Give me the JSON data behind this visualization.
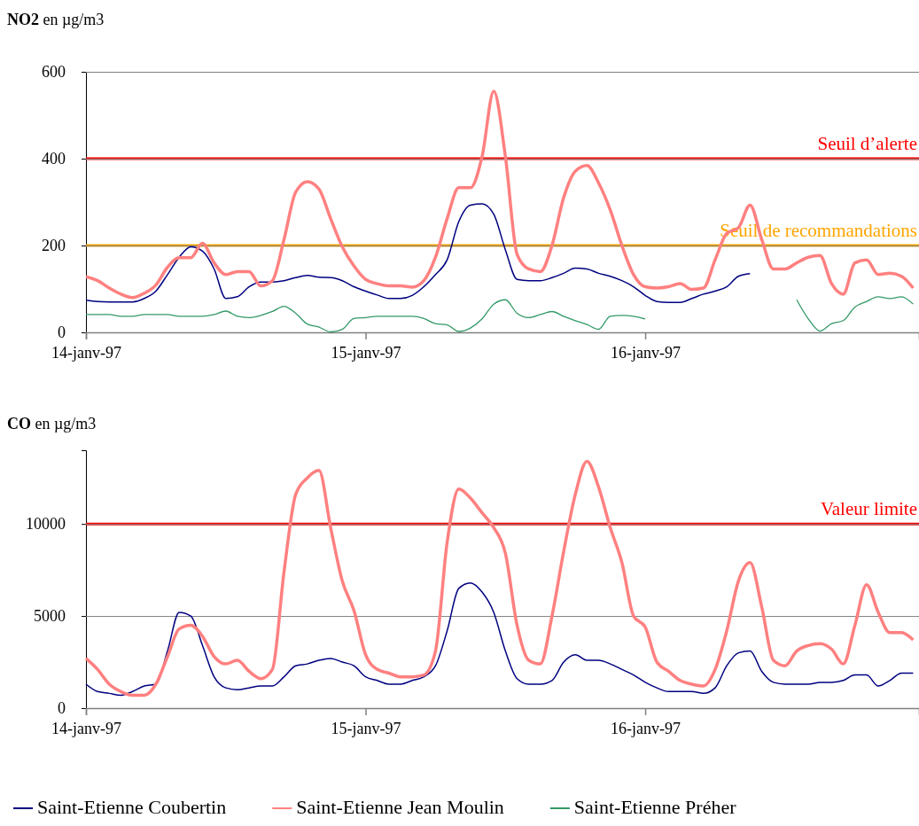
{
  "chart_data": [
    {
      "type": "line",
      "ylabel": "NO2 en µg/m3",
      "x": [
        "1997-01-14T00:00",
        "1997-01-14T01:00",
        "1997-01-14T02:00",
        "1997-01-14T03:00",
        "1997-01-14T04:00",
        "1997-01-14T05:00",
        "1997-01-14T06:00",
        "1997-01-14T07:00",
        "1997-01-14T08:00",
        "1997-01-14T09:00",
        "1997-01-14T10:00",
        "1997-01-14T11:00",
        "1997-01-14T12:00",
        "1997-01-14T13:00",
        "1997-01-14T14:00",
        "1997-01-14T15:00",
        "1997-01-14T16:00",
        "1997-01-14T17:00",
        "1997-01-14T18:00",
        "1997-01-14T19:00",
        "1997-01-14T20:00",
        "1997-01-14T21:00",
        "1997-01-14T22:00",
        "1997-01-14T23:00",
        "1997-01-15T00:00",
        "1997-01-15T01:00",
        "1997-01-15T02:00",
        "1997-01-15T03:00",
        "1997-01-15T04:00",
        "1997-01-15T05:00",
        "1997-01-15T06:00",
        "1997-01-15T07:00",
        "1997-01-15T08:00",
        "1997-01-15T09:00",
        "1997-01-15T10:00",
        "1997-01-15T11:00",
        "1997-01-15T12:00",
        "1997-01-15T13:00",
        "1997-01-15T14:00",
        "1997-01-15T15:00",
        "1997-01-15T16:00",
        "1997-01-15T17:00",
        "1997-01-15T18:00",
        "1997-01-15T19:00",
        "1997-01-15T20:00",
        "1997-01-15T21:00",
        "1997-01-15T22:00",
        "1997-01-15T23:00",
        "1997-01-16T00:00",
        "1997-01-16T01:00",
        "1997-01-16T02:00",
        "1997-01-16T03:00",
        "1997-01-16T04:00",
        "1997-01-16T05:00",
        "1997-01-16T06:00",
        "1997-01-16T07:00",
        "1997-01-16T08:00",
        "1997-01-16T09:00",
        "1997-01-16T10:00",
        "1997-01-16T11:00",
        "1997-01-16T12:00",
        "1997-01-16T13:00",
        "1997-01-16T14:00",
        "1997-01-16T15:00",
        "1997-01-16T16:00",
        "1997-01-16T17:00",
        "1997-01-16T18:00",
        "1997-01-16T19:00",
        "1997-01-16T20:00",
        "1997-01-16T21:00",
        "1997-01-16T22:00",
        "1997-01-16T23:00"
      ],
      "xlim": [
        "1997-01-14T00:00",
        "1997-01-16T23:30"
      ],
      "xticks": [
        {
          "value": "1997-01-14",
          "label": "14-janv-97"
        },
        {
          "value": "1997-01-15",
          "label": "15-janv-97"
        },
        {
          "value": "1997-01-16",
          "label": "16-janv-97"
        }
      ],
      "ylim": [
        0,
        600
      ],
      "yticks": [
        0,
        200,
        400,
        600
      ],
      "grid": "y",
      "legend": "bottom",
      "series": [
        {
          "name": "Saint-Etienne Coubertin",
          "color": "#000080",
          "values": [
            74,
            71,
            70,
            70,
            70,
            78,
            95,
            133,
            173,
            197,
            187,
            146,
            78,
            82,
            105,
            116,
            116,
            119,
            126,
            131,
            127,
            126,
            119,
            105,
            95,
            86,
            78,
            78,
            85,
            105,
            133,
            167,
            255,
            293,
            296,
            272,
            190,
            122,
            119,
            119,
            126,
            136,
            148,
            146,
            136,
            129,
            119,
            105,
            85,
            71,
            69,
            69,
            78,
            88,
            95,
            105,
            129,
            135,
            null,
            null,
            null,
            null,
            null,
            null,
            null,
            null,
            null,
            null,
            null,
            null,
            null,
            null
          ]
        },
        {
          "name": "Saint-Etienne Jean Moulin",
          "color": "#ff8080",
          "values": [
            128,
            119,
            102,
            88,
            80,
            90,
            109,
            150,
            172,
            172,
            205,
            160,
            133,
            140,
            140,
            107,
            119,
            214,
            323,
            347,
            330,
            262,
            197,
            153,
            122,
            112,
            107,
            107,
            104,
            119,
            173,
            262,
            333,
            333,
            405,
            555,
            405,
            180,
            146,
            140,
            200,
            310,
            371,
            384,
            344,
            282,
            200,
            133,
            105,
            102,
            105,
            112,
            99,
            102,
            167,
            228,
            241,
            293,
            214,
            146,
            146,
            160,
            173,
            177,
            112,
            88,
            160,
            167,
            133,
            136,
            129,
            102
          ]
        },
        {
          "name": "Saint-Etienne Préher",
          "color": "#339966",
          "values": [
            41,
            41,
            41,
            37,
            37,
            41,
            41,
            41,
            37,
            37,
            37,
            41,
            49,
            37,
            34,
            39,
            48,
            60,
            44,
            19,
            12,
            1,
            7,
            32,
            34,
            37,
            37,
            37,
            37,
            32,
            20,
            17,
            2,
            10,
            31,
            65,
            75,
            44,
            34,
            41,
            48,
            37,
            27,
            18,
            7,
            37,
            39,
            37,
            31,
            null,
            null,
            null,
            null,
            null,
            null,
            null,
            null,
            null,
            null,
            null,
            null,
            75,
            31,
            3,
            20,
            27,
            58,
            71,
            82,
            78,
            82,
            65
          ]
        }
      ],
      "ref_lines": [
        {
          "axis": "y",
          "value": 400,
          "label": "Seuil d’alerte",
          "color": "#ff0000"
        },
        {
          "axis": "y",
          "value": 200,
          "label": "Seuil de recommandations",
          "color": "#ffa500"
        }
      ]
    },
    {
      "type": "line",
      "ylabel": "CO en µg/m3",
      "x": [
        "1997-01-14T00:00",
        "1997-01-14T01:00",
        "1997-01-14T02:00",
        "1997-01-14T03:00",
        "1997-01-14T04:00",
        "1997-01-14T05:00",
        "1997-01-14T06:00",
        "1997-01-14T07:00",
        "1997-01-14T08:00",
        "1997-01-14T09:00",
        "1997-01-14T10:00",
        "1997-01-14T11:00",
        "1997-01-14T12:00",
        "1997-01-14T13:00",
        "1997-01-14T14:00",
        "1997-01-14T15:00",
        "1997-01-14T16:00",
        "1997-01-14T17:00",
        "1997-01-14T18:00",
        "1997-01-14T19:00",
        "1997-01-14T20:00",
        "1997-01-14T21:00",
        "1997-01-14T22:00",
        "1997-01-14T23:00",
        "1997-01-15T00:00",
        "1997-01-15T01:00",
        "1997-01-15T02:00",
        "1997-01-15T03:00",
        "1997-01-15T04:00",
        "1997-01-15T05:00",
        "1997-01-15T06:00",
        "1997-01-15T07:00",
        "1997-01-15T08:00",
        "1997-01-15T09:00",
        "1997-01-15T10:00",
        "1997-01-15T11:00",
        "1997-01-15T12:00",
        "1997-01-15T13:00",
        "1997-01-15T14:00",
        "1997-01-15T15:00",
        "1997-01-15T16:00",
        "1997-01-15T17:00",
        "1997-01-15T18:00",
        "1997-01-15T19:00",
        "1997-01-15T20:00",
        "1997-01-15T21:00",
        "1997-01-15T22:00",
        "1997-01-15T23:00",
        "1997-01-16T00:00",
        "1997-01-16T01:00",
        "1997-01-16T02:00",
        "1997-01-16T03:00",
        "1997-01-16T04:00",
        "1997-01-16T05:00",
        "1997-01-16T06:00",
        "1997-01-16T07:00",
        "1997-01-16T08:00",
        "1997-01-16T09:00",
        "1997-01-16T10:00",
        "1997-01-16T11:00",
        "1997-01-16T12:00",
        "1997-01-16T13:00",
        "1997-01-16T14:00",
        "1997-01-16T15:00",
        "1997-01-16T16:00",
        "1997-01-16T17:00",
        "1997-01-16T18:00",
        "1997-01-16T19:00",
        "1997-01-16T20:00",
        "1997-01-16T21:00",
        "1997-01-16T22:00",
        "1997-01-16T23:00"
      ],
      "xlim": [
        "1997-01-14T00:00",
        "1997-01-16T23:30"
      ],
      "xticks": [
        {
          "value": "1997-01-14",
          "label": "14-janv-97"
        },
        {
          "value": "1997-01-15",
          "label": "15-janv-97"
        },
        {
          "value": "1997-01-16",
          "label": "16-janv-97"
        }
      ],
      "ylim": [
        0,
        14000
      ],
      "yticks": [
        0,
        5000,
        10000
      ],
      "grid": "y",
      "series": [
        {
          "color": "#000080",
          "values": [
            1300,
            900,
            800,
            700,
            900,
            1200,
            1300,
            3100,
            5200,
            5000,
            3400,
            1700,
            1100,
            1000,
            1100,
            1200,
            1200,
            1700,
            2300,
            2400,
            2600,
            2700,
            2500,
            2300,
            1700,
            1500,
            1300,
            1300,
            1500,
            1700,
            2300,
            4200,
            6500,
            6800,
            6300,
            5200,
            3100,
            1600,
            1300,
            1300,
            1500,
            2500,
            2900,
            2600,
            2600,
            2400,
            2100,
            1800,
            1400,
            1100,
            900,
            900,
            900,
            800,
            1100,
            2300,
            3000,
            3100,
            2000,
            1400,
            1300,
            1300,
            1300,
            1400,
            1400,
            1500,
            1800,
            1800,
            1200,
            1500,
            1900,
            1900
          ]
        },
        {
          "color": "#ff8080",
          "values": [
            2700,
            2100,
            1300,
            900,
            700,
            700,
            1300,
            2800,
            4300,
            4500,
            3900,
            2800,
            2400,
            2600,
            2000,
            1600,
            2100,
            7400,
            11600,
            12500,
            12900,
            9800,
            6900,
            5300,
            2900,
            2100,
            1900,
            1700,
            1700,
            1800,
            3100,
            9000,
            11900,
            11400,
            10600,
            9800,
            8400,
            4500,
            2600,
            2400,
            5000,
            8500,
            11600,
            13400,
            12000,
            9800,
            7900,
            5000,
            4400,
            2500,
            2000,
            1500,
            1300,
            1200,
            2100,
            4200,
            6900,
            7900,
            5500,
            2600,
            2300,
            3100,
            3400,
            3500,
            3200,
            2400,
            4500,
            6700,
            5200,
            4100,
            4100,
            3700
          ]
        }
      ],
      "ref_lines": [
        {
          "axis": "y",
          "value": 10000,
          "label": "Valeur limite",
          "color": "#ff0000"
        }
      ]
    }
  ]
}
